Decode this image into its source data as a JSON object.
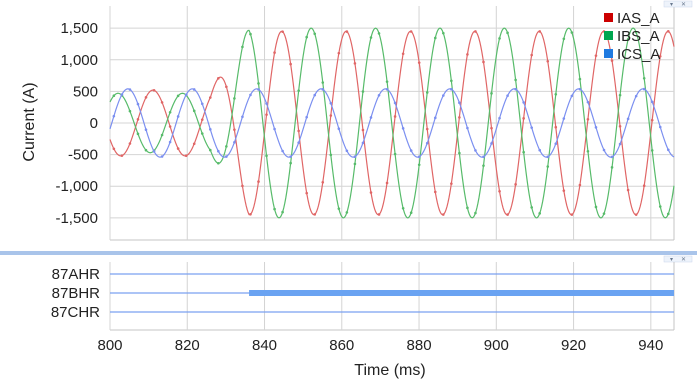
{
  "analog_pane": {
    "chart_data": {
      "type": "line",
      "title": "",
      "xlabel": "Time (ms)",
      "ylabel": "Current (A)",
      "xlim": [
        800,
        946
      ],
      "ylim": [
        -1850,
        1850
      ],
      "x_ticks": [
        800,
        820,
        840,
        860,
        880,
        900,
        920,
        940
      ],
      "y_ticks": [
        1500,
        1000,
        500,
        0,
        -500,
        -1000,
        -1500
      ],
      "y_tick_labels": [
        "1,500",
        "1,000",
        "500",
        "0",
        "-500",
        "-1,000",
        "-1,500"
      ],
      "grid": true,
      "legend_position": "top-right",
      "frequency_hz": 60,
      "series": [
        {
          "name": "IAS_A",
          "color": "#e06666",
          "legend_color": "#cc0000",
          "prefault_peak": 520,
          "fault_peak": 1450,
          "phase_deg": 210
        },
        {
          "name": "IBS_A",
          "color": "#57bb6a",
          "legend_color": "#00a650",
          "prefault_peak": 470,
          "fault_peak": 1500,
          "phase_deg": 45
        },
        {
          "name": "ICS_A",
          "color": "#7b8ff0",
          "legend_color": "#1f7ae0",
          "prefault_peak": 540,
          "fault_peak": 540,
          "phase_deg": -10
        }
      ],
      "fault_inception_ms": 826,
      "fault_ramp_ms": 10
    }
  },
  "digital_pane": {
    "chart_data": {
      "type": "line",
      "title": "",
      "xlabel": "Time (ms)",
      "xlim": [
        800,
        946
      ],
      "x_ticks": [
        800,
        820,
        840,
        860,
        880,
        900,
        920,
        940
      ],
      "grid": true,
      "series": [
        {
          "name": "87AHR",
          "values": [
            0
          ],
          "asserted_from_ms": null
        },
        {
          "name": "87BHR",
          "values": [
            0,
            1
          ],
          "asserted_from_ms": 836
        },
        {
          "name": "87CHR",
          "values": [
            0
          ],
          "asserted_from_ms": null
        }
      ],
      "line_color": "#7aa0f0",
      "asserted_color": "#6aa3f2"
    }
  }
}
